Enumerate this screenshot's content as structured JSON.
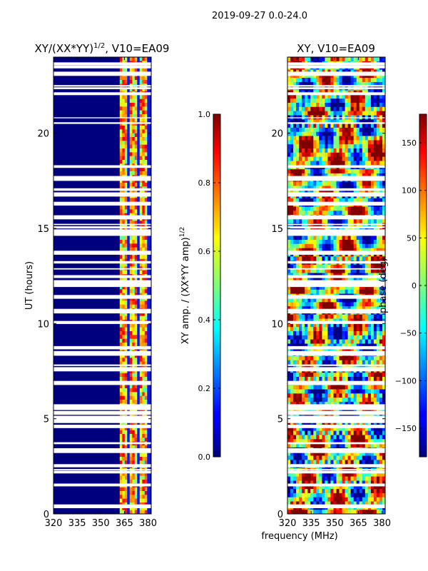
{
  "suptitle": "2019-09-27 0.0-24.0",
  "xlabel": "frequency (MHz)",
  "chart_data": [
    {
      "type": "heatmap",
      "title_main": "XY/(XX*YY)",
      "title_sup": "1/2",
      "title_rest": ", V10=EA09",
      "xlabel": "frequency (MHz)",
      "ylabel": "UT (hours)",
      "xlim": [
        320,
        382
      ],
      "ylim": [
        0,
        24
      ],
      "xticks": [
        "320",
        "335",
        "350",
        "365",
        "380"
      ],
      "yticks": [
        "0",
        "5",
        "10",
        "15",
        "20"
      ],
      "active_band_mhz": [
        362,
        381
      ],
      "colorbar": {
        "label_main": "XY amp. / (XX*YY amp)",
        "label_sup": "1/2",
        "range": [
          0.0,
          1.0
        ],
        "ticks": [
          "0.0",
          "0.2",
          "0.4",
          "0.6",
          "0.8",
          "1.0"
        ]
      }
    },
    {
      "type": "heatmap",
      "title": "XY, V10=EA09",
      "xlabel": "frequency (MHz)",
      "xlim": [
        320,
        382
      ],
      "ylim": [
        0,
        24
      ],
      "xticks": [
        "320",
        "335",
        "350",
        "365",
        "380"
      ],
      "yticks": [
        "0",
        "5",
        "10",
        "15",
        "20"
      ],
      "colorbar": {
        "label": "phase (deg)",
        "range": [
          -180,
          180
        ],
        "ticks": [
          "−150",
          "−100",
          "−50",
          "0",
          "50",
          "100",
          "150"
        ]
      }
    }
  ]
}
